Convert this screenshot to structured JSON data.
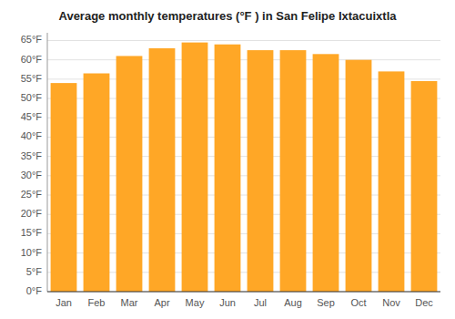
{
  "chart_data": {
    "type": "bar",
    "title": "Average monthly temperatures (°F ) in San Felipe Ixtacuixtla",
    "categories": [
      "Jan",
      "Feb",
      "Mar",
      "Apr",
      "May",
      "Jun",
      "Jul",
      "Aug",
      "Sep",
      "Oct",
      "Nov",
      "Dec"
    ],
    "values": [
      54,
      56.5,
      61,
      63,
      64.5,
      64,
      62.5,
      62.5,
      61.5,
      60,
      57,
      54.5
    ],
    "color": "#FFA726",
    "ylim": [
      0,
      67
    ],
    "yticks": [
      {
        "value": 0,
        "label": "0°F"
      },
      {
        "value": 5,
        "label": "5°F"
      },
      {
        "value": 10,
        "label": "10°F"
      },
      {
        "value": 15,
        "label": "15°F"
      },
      {
        "value": 20,
        "label": "20°F"
      },
      {
        "value": 25,
        "label": "25°F"
      },
      {
        "value": 30,
        "label": "30°F"
      },
      {
        "value": 35,
        "label": "35°F"
      },
      {
        "value": 40,
        "label": "40°F"
      },
      {
        "value": 45,
        "label": "45°F"
      },
      {
        "value": 50,
        "label": "50°F"
      },
      {
        "value": 55,
        "label": "55°F"
      },
      {
        "value": 60,
        "label": "60°F"
      },
      {
        "value": 65,
        "label": "65°F"
      }
    ],
    "grid": true
  }
}
